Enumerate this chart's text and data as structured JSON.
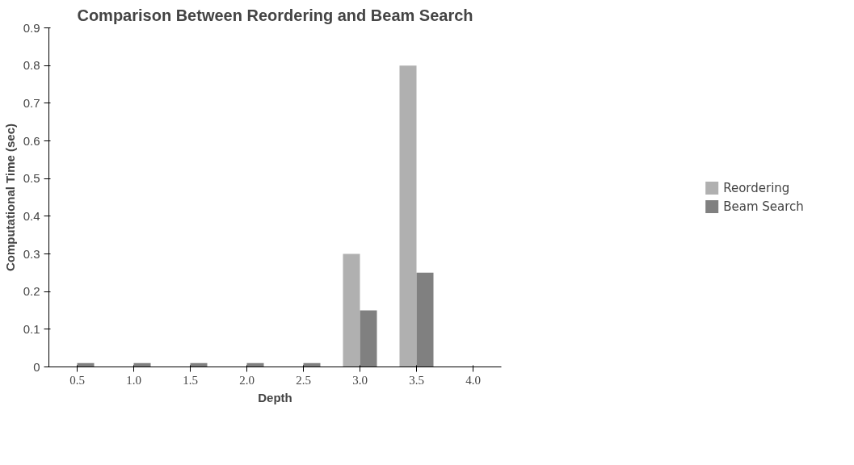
{
  "chart_data": {
    "type": "bar",
    "title": "Comparison Between Reordering and Beam Search",
    "xlabel": "Depth",
    "ylabel": "Computational Time (sec)",
    "categories": [
      "0.5",
      "1.0",
      "1.5",
      "2.0",
      "2.5",
      "3.0",
      "3.5",
      "4.0"
    ],
    "series": [
      {
        "name": "Reordering",
        "color": "#b0b0b0",
        "values": [
          0,
          0,
          0,
          0,
          0,
          0.3,
          0.8,
          null
        ]
      },
      {
        "name": "Beam Search",
        "color": "#808080",
        "values": [
          0.01,
          0.01,
          0.01,
          0.01,
          0.01,
          0.15,
          0.25,
          null
        ]
      }
    ],
    "ylim": [
      0,
      0.9
    ],
    "yticks": [
      0,
      0.1,
      0.2,
      0.3,
      0.4,
      0.5,
      0.6,
      0.7,
      0.8,
      0.9
    ],
    "grid": false,
    "legend": "right"
  }
}
